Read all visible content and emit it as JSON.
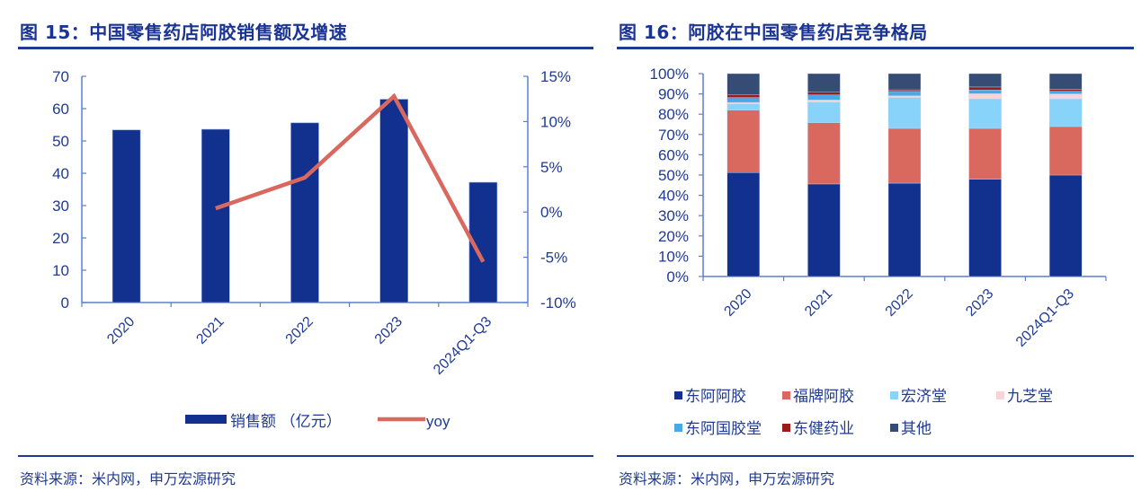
{
  "left": {
    "title": "图 15：中国零售药店阿胶销售额及增速",
    "source": "资料来源：米内网，申万宏源研究"
  },
  "right": {
    "title": "图 16：阿胶在中国零售药店竞争格局",
    "source": "资料来源：米内网，申万宏源研究"
  },
  "colors": {
    "axis": "#5b7fcf",
    "text": "#1f3a93",
    "bar": "#12308e",
    "line": "#d9685f"
  },
  "chart_data": [
    {
      "type": "bar+line",
      "title": "图 15：中国零售药店阿胶销售额及增速",
      "categories": [
        "2020",
        "2021",
        "2022",
        "2023",
        "2024Q1-Q3"
      ],
      "series": [
        {
          "name": "销售额 （亿元）",
          "type": "bar",
          "axis": "left",
          "color": "#12308e",
          "values": [
            53.4,
            53.6,
            55.6,
            62.9,
            37.2
          ]
        },
        {
          "name": "yoy",
          "type": "line",
          "axis": "right",
          "color": "#d9685f",
          "values": [
            null,
            0.004,
            0.038,
            0.128,
            -0.055
          ]
        }
      ],
      "y_left": {
        "ylim": [
          0,
          70
        ],
        "ticks": [
          "70",
          "60",
          "50",
          "40",
          "30",
          "20",
          "10",
          "0"
        ],
        "tick_values": [
          70,
          60,
          50,
          40,
          30,
          20,
          10,
          0
        ]
      },
      "y_right": {
        "ylim": [
          -0.1,
          0.15
        ],
        "ticks": [
          "15%",
          "10%",
          "5%",
          "0%",
          "-5%",
          "-10%"
        ],
        "tick_values": [
          0.15,
          0.1,
          0.05,
          0.0,
          -0.05,
          -0.1
        ]
      },
      "legend": [
        "销售额 （亿元）",
        "yoy"
      ],
      "legend_position": "bottom",
      "grid": false
    },
    {
      "type": "stacked-bar",
      "title": "图 16：阿胶在中国零售药店竞争格局",
      "categories": [
        "2020",
        "2021",
        "2022",
        "2023",
        "2024Q1-Q3"
      ],
      "ylim": [
        0,
        1
      ],
      "ticks": [
        "100%",
        "90%",
        "80%",
        "70%",
        "60%",
        "50%",
        "40%",
        "30%",
        "20%",
        "10%",
        "0%"
      ],
      "tick_values": [
        1.0,
        0.9,
        0.8,
        0.7,
        0.6,
        0.5,
        0.4,
        0.3,
        0.2,
        0.1,
        0.0
      ],
      "series": [
        {
          "name": "东阿阿胶",
          "color": "#12308e",
          "values": [
            0.512,
            0.456,
            0.46,
            0.479,
            0.5
          ]
        },
        {
          "name": "福牌阿胶",
          "color": "#d9685f",
          "values": [
            0.308,
            0.302,
            0.27,
            0.251,
            0.239
          ]
        },
        {
          "name": "宏济堂",
          "color": "#87d3fa",
          "values": [
            0.03,
            0.101,
            0.152,
            0.145,
            0.136
          ]
        },
        {
          "name": "九芝堂",
          "color": "#f6d4d8",
          "values": [
            0.008,
            0.011,
            0.009,
            0.026,
            0.025
          ]
        },
        {
          "name": "东阿国胶堂",
          "color": "#4aa8e6",
          "values": [
            0.024,
            0.025,
            0.021,
            0.018,
            0.013
          ]
        },
        {
          "name": "东健药业",
          "color": "#9a1c1c",
          "values": [
            0.013,
            0.013,
            0.008,
            0.015,
            0.01
          ]
        },
        {
          "name": "其他",
          "color": "#354d74",
          "values": [
            0.105,
            0.092,
            0.08,
            0.066,
            0.077
          ]
        }
      ],
      "legend_position": "bottom",
      "grid": false
    }
  ]
}
